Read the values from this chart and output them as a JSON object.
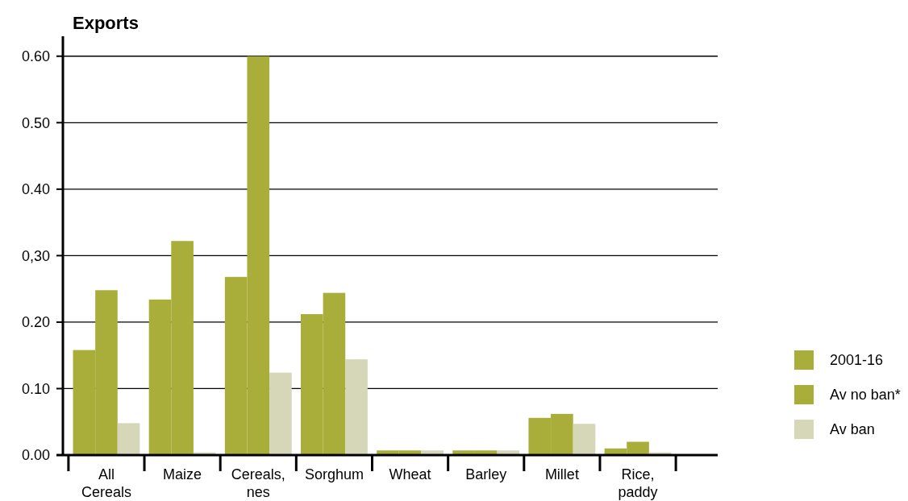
{
  "chart_data": {
    "type": "bar",
    "title": "Exports",
    "categories": [
      "All Cereals",
      "Maize",
      "Cereals, nes",
      "Sorghum",
      "Wheat",
      "Barley",
      "Millet",
      "Rice, paddy"
    ],
    "series": [
      {
        "name": "2001-16",
        "color": "#a9ae3a",
        "values": [
          0.158,
          0.234,
          0.268,
          0.212,
          0.007,
          0.007,
          0.056,
          0.01
        ]
      },
      {
        "name": "Av no ban*",
        "color": "#a9ae3a",
        "values": [
          0.248,
          0.322,
          0.6,
          0.244,
          0.007,
          0.007,
          0.062,
          0.02
        ]
      },
      {
        "name": "Av ban",
        "color": "#d6d6b8",
        "values": [
          0.048,
          0.004,
          0.124,
          0.144,
          0.007,
          0.007,
          0.047,
          0.004
        ]
      }
    ],
    "ylim": [
      0,
      0.63
    ],
    "yticks": [
      {
        "value": 0,
        "label": "0.00"
      },
      {
        "value": 0.1,
        "label": "0.10"
      },
      {
        "value": 0.2,
        "label": "0.20"
      },
      {
        "value": 0.3,
        "label": "0,30"
      },
      {
        "value": 0.4,
        "label": "0.40"
      },
      {
        "value": 0.5,
        "label": "0.50"
      },
      {
        "value": 0.6,
        "label": "0.60"
      }
    ],
    "grid": "y",
    "legend": "right"
  }
}
